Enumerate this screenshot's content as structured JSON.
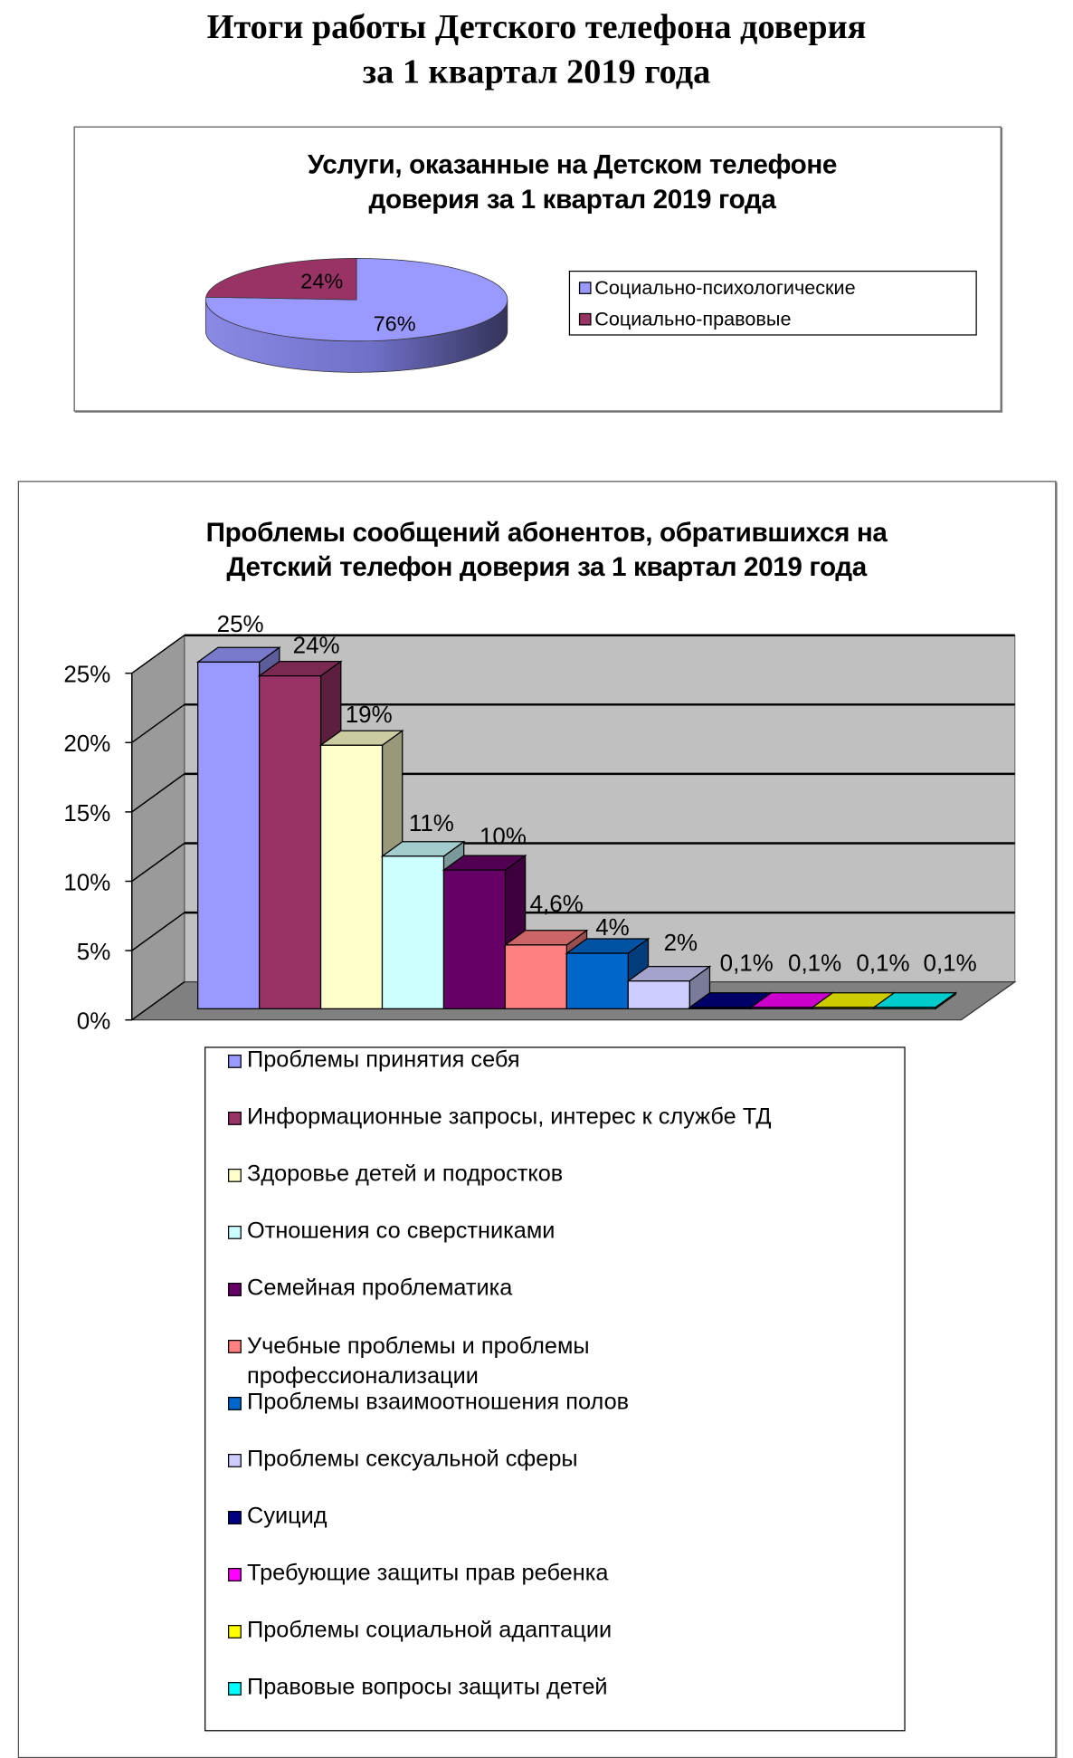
{
  "page_title": [
    "Итоги работы Детского телефона доверия",
    "за 1 квартал 2019 года"
  ],
  "chart_data": [
    {
      "type": "pie",
      "title": [
        "Услуги, оказанные на Детском телефоне",
        "доверия за 1 квартал 2019 года"
      ],
      "labels": [
        "Социально-психологические",
        "Социально-правовые"
      ],
      "values": [
        76,
        24
      ],
      "data_labels": [
        "76%",
        "24%"
      ],
      "colors": [
        "#9999ff",
        "#993366"
      ],
      "three_d": true,
      "legend": "right"
    },
    {
      "type": "bar",
      "three_d": true,
      "title": [
        "Проблемы сообщений абонентов, обратившихся на",
        "Детский телефон доверия за 1 квартал 2019 года"
      ],
      "categories": [
        "Проблемы принятия себя",
        "Информационные запросы, интерес к службе ТД",
        "Здоровье детей и подростков",
        "Отношения со сверстниками",
        "Семейная проблематика",
        " Учебные проблемы и проблемы профессионализации",
        "Проблемы взаимоотношения полов",
        "Проблемы сексуальной сферы",
        "Суицид",
        "Требующие защиты прав ребенка",
        "Проблемы социальной адаптации",
        "Правовые вопросы защиты детей"
      ],
      "values": [
        25,
        24,
        19,
        11,
        10,
        4.6,
        4,
        2,
        0.1,
        0.1,
        0.1,
        0.1
      ],
      "data_labels": [
        "25%",
        "24%",
        "19%",
        "11%",
        "10%",
        "4,6%",
        "4%",
        "2%",
        "0,1%",
        "0,1%",
        "0,1%",
        "0,1%"
      ],
      "colors": [
        "#9999ff",
        "#993366",
        "#ffffcc",
        "#ccffff",
        "#660066",
        "#ff8080",
        "#0066cc",
        "#ccccff",
        "#000080",
        "#ff00ff",
        "#ffff00",
        "#00ffff"
      ],
      "yticks": [
        "0%",
        "5%",
        "10%",
        "15%",
        "20%",
        "25%"
      ],
      "ylim": [
        0,
        25
      ],
      "grid": true,
      "legend": "bottom"
    }
  ]
}
